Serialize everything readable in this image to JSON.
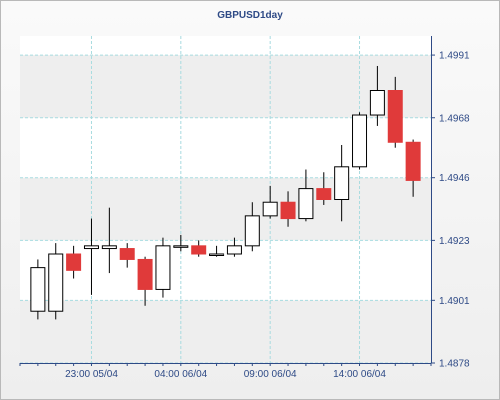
{
  "chart_data": {
    "type": "candlestick",
    "title": "GBPUSD1day",
    "xlabel": "",
    "ylabel": "",
    "ylim": [
      1.4878,
      1.4998
    ],
    "y_ticks": [
      1.4878,
      1.4901,
      1.4923,
      1.4946,
      1.4968,
      1.4991
    ],
    "x_ticks": [
      {
        "label": "23:00 05/04",
        "index": 3
      },
      {
        "label": "04:00 06/04",
        "index": 8
      },
      {
        "label": "09:00 06/04",
        "index": 13
      },
      {
        "label": "14:00 06/04",
        "index": 18
      }
    ],
    "candles": [
      {
        "open": 1.4897,
        "high": 1.4916,
        "low": 1.4894,
        "close": 1.4913
      },
      {
        "open": 1.4897,
        "high": 1.4922,
        "low": 1.4894,
        "close": 1.4918
      },
      {
        "open": 1.4918,
        "high": 1.4921,
        "low": 1.4909,
        "close": 1.4912
      },
      {
        "open": 1.492,
        "high": 1.4931,
        "low": 1.4903,
        "close": 1.4921
      },
      {
        "open": 1.492,
        "high": 1.4935,
        "low": 1.4911,
        "close": 1.4921
      },
      {
        "open": 1.492,
        "high": 1.4922,
        "low": 1.4913,
        "close": 1.4916
      },
      {
        "open": 1.4916,
        "high": 1.4917,
        "low": 1.4899,
        "close": 1.4905
      },
      {
        "open": 1.4905,
        "high": 1.4924,
        "low": 1.4902,
        "close": 1.4921
      },
      {
        "open": 1.4921,
        "high": 1.4925,
        "low": 1.4919,
        "close": 1.4921
      },
      {
        "open": 1.4921,
        "high": 1.4923,
        "low": 1.4917,
        "close": 1.4918
      },
      {
        "open": 1.4918,
        "high": 1.4921,
        "low": 1.4917,
        "close": 1.4918
      },
      {
        "open": 1.4918,
        "high": 1.4924,
        "low": 1.4917,
        "close": 1.4921
      },
      {
        "open": 1.4921,
        "high": 1.4937,
        "low": 1.4919,
        "close": 1.4932
      },
      {
        "open": 1.4932,
        "high": 1.4943,
        "low": 1.4931,
        "close": 1.4937
      },
      {
        "open": 1.4937,
        "high": 1.4941,
        "low": 1.4928,
        "close": 1.4931
      },
      {
        "open": 1.4931,
        "high": 1.4949,
        "low": 1.493,
        "close": 1.4942
      },
      {
        "open": 1.4942,
        "high": 1.4948,
        "low": 1.4936,
        "close": 1.4938
      },
      {
        "open": 1.4938,
        "high": 1.4958,
        "low": 1.493,
        "close": 1.495
      },
      {
        "open": 1.495,
        "high": 1.497,
        "low": 1.4949,
        "close": 1.4969
      },
      {
        "open": 1.4969,
        "high": 1.4987,
        "low": 1.4965,
        "close": 1.4978
      },
      {
        "open": 1.4978,
        "high": 1.4983,
        "low": 1.4957,
        "close": 1.4959
      },
      {
        "open": 1.4959,
        "high": 1.496,
        "low": 1.4939,
        "close": 1.4945
      }
    ],
    "grid": true,
    "colors": {
      "up": "#ffffff",
      "down": "#e03a3a",
      "grid": "#a8dbe0",
      "axis": "#2e4a86",
      "band": "#eeeeee"
    }
  }
}
